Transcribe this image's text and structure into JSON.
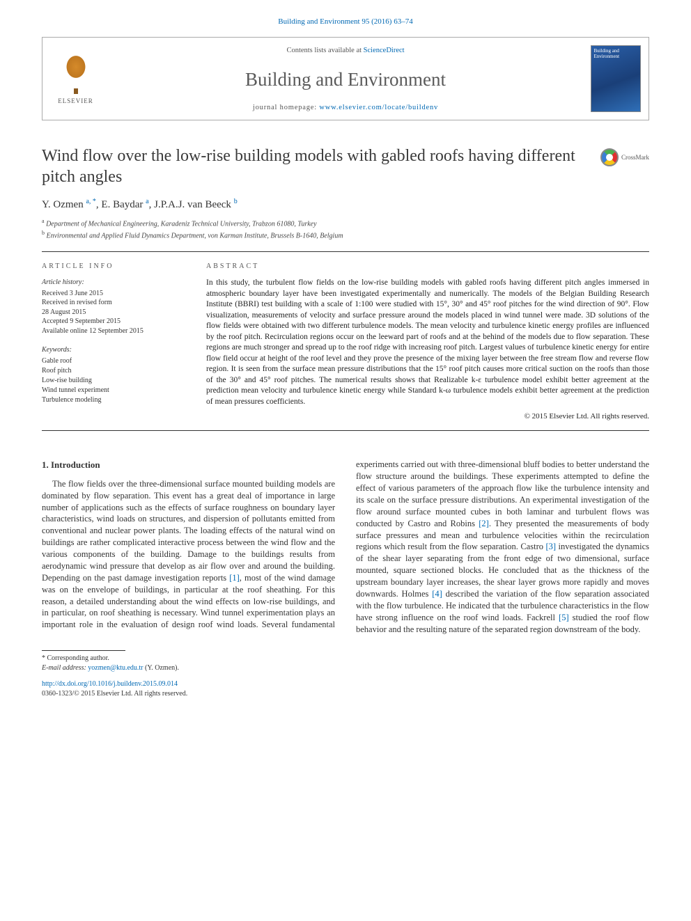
{
  "running_head": "Building and Environment 95 (2016) 63–74",
  "header": {
    "contents_prefix": "Contents lists available at ",
    "contents_link": "ScienceDirect",
    "journal": "Building and Environment",
    "homepage_prefix": "journal homepage: ",
    "homepage_link": "www.elsevier.com/locate/buildenv",
    "publisher_label": "ELSEVIER",
    "cover_text": "Building and Environment"
  },
  "title": "Wind flow over the low-rise building models with gabled roofs having different pitch angles",
  "crossmark_label": "CrossMark",
  "authors_line": "Y. Ozmen ",
  "authors": [
    {
      "name": "Y. Ozmen",
      "marks": "a, *"
    },
    {
      "name": "E. Baydar",
      "marks": "a"
    },
    {
      "name": "J.P.A.J. van Beeck",
      "marks": "b"
    }
  ],
  "affiliations": [
    {
      "mark": "a",
      "text": "Department of Mechanical Engineering, Karadeniz Technical University, Trabzon 61080, Turkey"
    },
    {
      "mark": "b",
      "text": "Environmental and Applied Fluid Dynamics Department, von Karman Institute, Brussels B-1640, Belgium"
    }
  ],
  "info": {
    "heading": "article info",
    "history_head": "Article history:",
    "history": [
      "Received 3 June 2015",
      "Received in revised form",
      "28 August 2015",
      "Accepted 9 September 2015",
      "Available online 12 September 2015"
    ],
    "keywords_head": "Keywords:",
    "keywords": [
      "Gable roof",
      "Roof pitch",
      "Low-rise building",
      "Wind tunnel experiment",
      "Turbulence modeling"
    ]
  },
  "abstract": {
    "heading": "abstract",
    "text": "In this study, the turbulent flow fields on the low-rise building models with gabled roofs having different pitch angles immersed in atmospheric boundary layer have been investigated experimentally and numerically. The models of the Belgian Building Research Institute (BBRI) test building with a scale of 1:100 were studied with 15°, 30° and 45° roof pitches for the wind direction of 90°. Flow visualization, measurements of velocity and surface pressure around the models placed in wind tunnel were made. 3D solutions of the flow fields were obtained with two different turbulence models. The mean velocity and turbulence kinetic energy profiles are influenced by the roof pitch. Recirculation regions occur on the leeward part of roofs and at the behind of the models due to flow separation. These regions are much stronger and spread up to the roof ridge with increasing roof pitch. Largest values of turbulence kinetic energy for entire flow field occur at height of the roof level and they prove the presence of the mixing layer between the free stream flow and reverse flow region. It is seen from the surface mean pressure distributions that the 15° roof pitch causes more critical suction on the roofs than those of the 30° and 45° roof pitches. The numerical results shows that Realizable k-ε turbulence model exhibit better agreement at the prediction mean velocity and turbulence kinetic energy while Standard k-ω turbulence models exhibit better agreement at the prediction of mean pressures coefficients.",
    "copyright": "© 2015 Elsevier Ltd. All rights reserved."
  },
  "section1": {
    "heading": "1.  Introduction",
    "p1a": "The flow fields over the three-dimensional surface mounted building models are dominated by flow separation. This event has a great deal of importance in large number of applications such as the effects of surface roughness on boundary layer characteristics, wind loads on structures, and dispersion of pollutants emitted from conventional and nuclear power plants. The loading effects of the natural wind on buildings are rather complicated interactive process between the wind flow and the various components of the building. Damage to the buildings results from aerodynamic wind pressure that develop as air flow over and around the building. Depending on the past damage investigation reports ",
    "ref1": "[1]",
    "p1b": ", most of the wind damage was on the envelope of buildings, in particular at the roof sheathing. For this reason, a detailed understanding about the wind effects on low-rise buildings, and in particular, on roof sheathing is necessary. Wind tunnel experimentation plays an",
    "p2a": "important role in the evaluation of design roof wind loads. Several fundamental experiments carried out with three-dimensional bluff bodies to better understand the flow structure around the buildings. These experiments attempted to define the effect of various parameters of the approach flow like the turbulence intensity and its scale on the surface pressure distributions. An experimental investigation of the flow around surface mounted cubes in both laminar and turbulent flows was conducted by Castro and Robins ",
    "ref2": "[2]",
    "p2b": ". They presented the measurements of body surface pressures and mean and turbulence velocities within the recirculation regions which result from the flow separation. Castro ",
    "ref3": "[3]",
    "p2c": " investigated the dynamics of the shear layer separating from the front edge of two dimensional, surface mounted, square sectioned blocks. He concluded that as the thickness of the upstream boundary layer increases, the shear layer grows more rapidly and moves downwards. Holmes ",
    "ref4": "[4]",
    "p2d": " described the variation of the flow separation associated with the flow turbulence. He indicated that the turbulence characteristics in the flow have strong influence on the roof wind loads. Fackrell ",
    "ref5": "[5]",
    "p2e": " studied the roof flow behavior and the resulting nature of the separated region downstream of the body."
  },
  "footer": {
    "corr_label": "* Corresponding author.",
    "email_label": "E-mail address:",
    "email": "yozmen@ktu.edu.tr",
    "email_person": " (Y. Ozmen).",
    "doi": "http://dx.doi.org/10.1016/j.buildenv.2015.09.014",
    "issn_line": "0360-1323/© 2015 Elsevier Ltd. All rights reserved."
  },
  "colors": {
    "link": "#0068b3",
    "text": "#333333",
    "rule": "#333333"
  }
}
